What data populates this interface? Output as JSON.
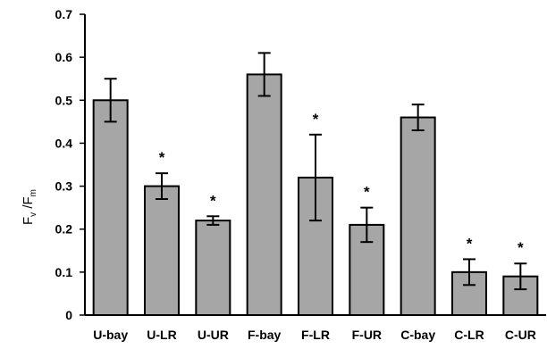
{
  "chart_data": {
    "type": "bar",
    "title": "",
    "xlabel": "",
    "ylabel": {
      "main": "F",
      "sub1": "v",
      "sep": " /F",
      "sub2": "m"
    },
    "ylim": [
      0,
      0.7
    ],
    "yticks": [
      "0",
      "0.1",
      "0.2",
      "0.3",
      "0.4",
      "0.5",
      "0.6",
      "0.7"
    ],
    "categories": [
      "U-bay",
      "U-LR",
      "U-UR",
      "F-bay",
      "F-LR",
      "F-UR",
      "C-bay",
      "C-LR",
      "C-UR"
    ],
    "values": [
      0.5,
      0.3,
      0.22,
      0.56,
      0.32,
      0.21,
      0.46,
      0.1,
      0.09
    ],
    "errors": [
      0.05,
      0.03,
      0.01,
      0.05,
      0.1,
      0.04,
      0.03,
      0.03,
      0.03
    ],
    "significance": [
      "",
      "*",
      "*",
      "",
      "*",
      "*",
      "",
      "*",
      "*"
    ],
    "grid": false,
    "legend": "none",
    "colors": {
      "bar_fill": "#a6a6a6",
      "bar_stroke": "#000000",
      "axis": "#000000"
    }
  }
}
